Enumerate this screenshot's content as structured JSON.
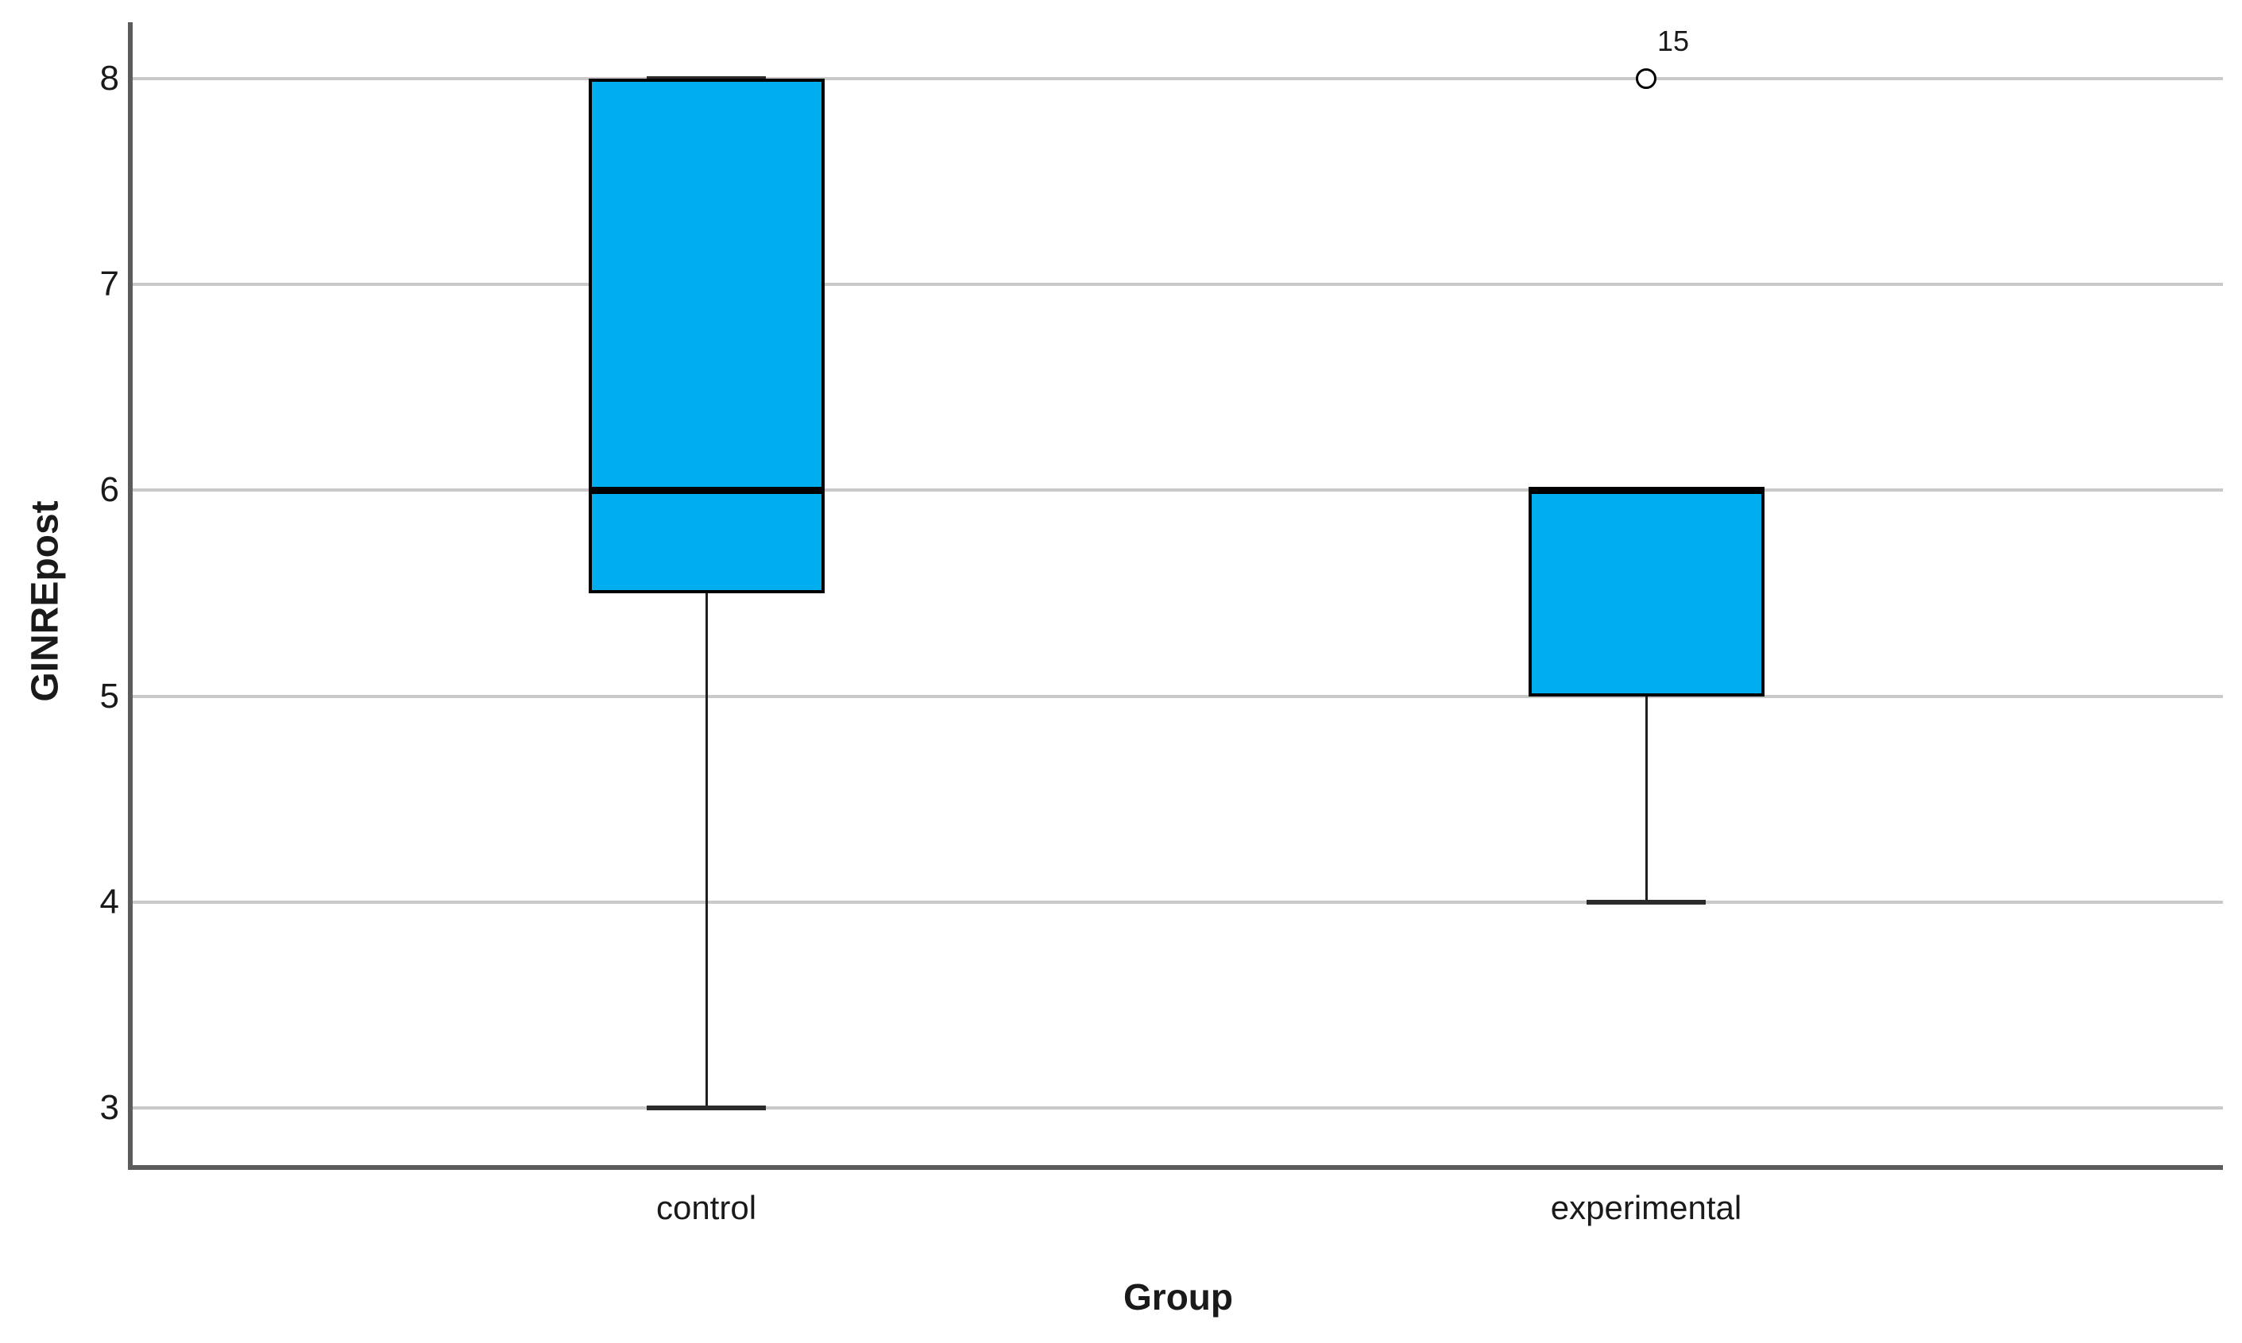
{
  "chart_data": {
    "type": "box",
    "title": "",
    "xlabel": "Group",
    "ylabel": "GINREpost",
    "categories": [
      "control",
      "experimental"
    ],
    "y_ticks": [
      3,
      4,
      5,
      6,
      7,
      8
    ],
    "ylim": [
      2.72,
      8.27
    ],
    "grid": "horizontal-only",
    "legend": "none",
    "series": [
      {
        "category": "control",
        "whisker_low": 3,
        "q1": 5.5,
        "median": 6,
        "q3": 8,
        "whisker_high": 8,
        "outliers": []
      },
      {
        "category": "experimental",
        "whisker_low": 4,
        "q1": 5,
        "median": 6,
        "q3": 6,
        "whisker_high": 6,
        "outliers": [
          {
            "value": 8,
            "label": "15"
          }
        ]
      }
    ],
    "colors": {
      "box_fill": "#00AEEF",
      "box_border": "#000000",
      "median": "#000000",
      "whisker": "#1f1f1f",
      "whisker_cap": "#2b2b2b",
      "gridline": "#c9c9c9",
      "axis_line": "#5c5c5c",
      "text": "#1a1a1a"
    }
  }
}
